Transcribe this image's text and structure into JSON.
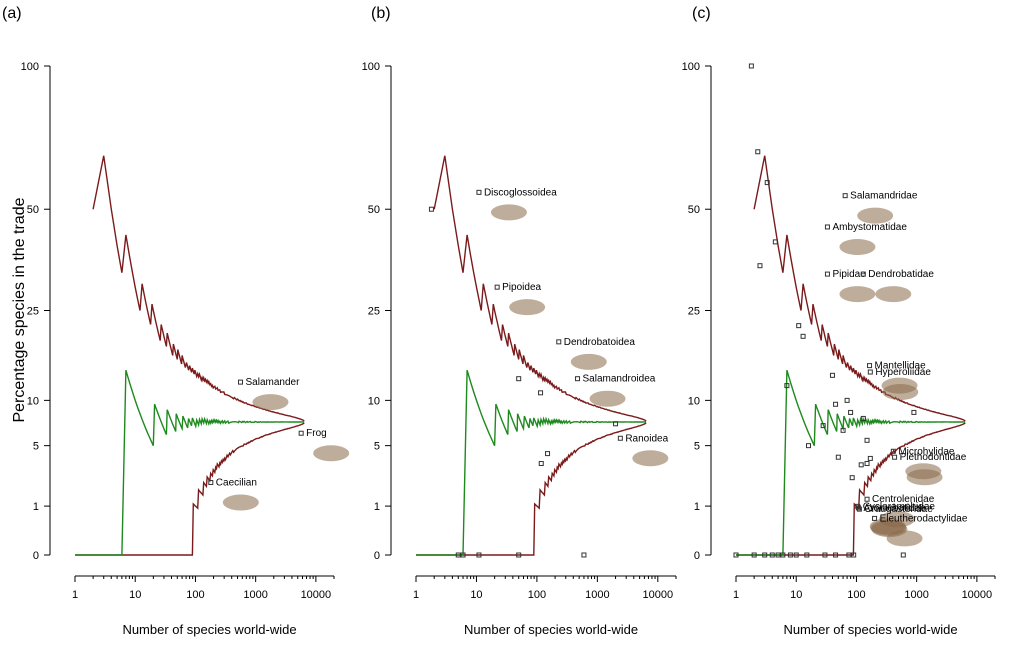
{
  "figure": {
    "ylabel": "Percentage species in the trade",
    "xlabel": "Number of species world-wide",
    "colors": {
      "upper_lower_bound": "#7a1a1a",
      "mean_line": "#1e8a1e",
      "points": "#333333",
      "axis": "#000000"
    }
  },
  "chart_data": [
    {
      "panel": "(a)",
      "type": "scatter",
      "xlabel": "Number of species world-wide",
      "ylabel": "Percentage species in the trade",
      "x_scale": "log",
      "y_scale": "sqrt",
      "xlim": [
        1,
        20000
      ],
      "ylim": [
        0,
        100
      ],
      "x_ticks": [
        "1",
        "10",
        "100",
        "1000",
        "10000"
      ],
      "y_ticks": [
        "0",
        "1",
        "5",
        "10",
        "25",
        "50",
        "100"
      ],
      "grid": false,
      "reference_lines": {
        "overall_rate_percent": 7.4,
        "total_species": 6500,
        "description": "funnel of expected maximum/minimum percentages (dark red) and expected mean (green)"
      },
      "points": [
        {
          "label": "Salamander",
          "x": 560,
          "y": 12.5,
          "icon": "salamander-icon"
        },
        {
          "label": "Frog",
          "x": 5700,
          "y": 6.2,
          "icon": "frog-icon"
        },
        {
          "label": "Caecilian",
          "x": 180,
          "y": 2.2,
          "icon": "caecilian-icon"
        }
      ]
    },
    {
      "panel": "(b)",
      "type": "scatter",
      "xlabel": "Number of species world-wide",
      "x_scale": "log",
      "y_scale": "sqrt",
      "xlim": [
        1,
        20000
      ],
      "ylim": [
        0,
        100
      ],
      "x_ticks": [
        "1",
        "10",
        "100",
        "1000",
        "10000"
      ],
      "y_ticks": [
        "0",
        "1",
        "5",
        "10",
        "25",
        "50",
        "100"
      ],
      "grid": false,
      "points": [
        {
          "label": "Discoglossoidea",
          "x": 11,
          "y": 55,
          "icon": "toad-icon"
        },
        {
          "label": "Pipoidea",
          "x": 22,
          "y": 30,
          "icon": "pipa-frog-icon"
        },
        {
          "label": "Dendrobatoidea",
          "x": 230,
          "y": 19,
          "icon": "poison-frog-icon"
        },
        {
          "label": "Salamandroidea",
          "x": 470,
          "y": 13,
          "icon": "salamander-icon"
        },
        {
          "label": "Ranoidea",
          "x": 2400,
          "y": 5.7,
          "icon": "frog-icon"
        },
        {
          "label": "",
          "x": 1.8,
          "y": 50
        },
        {
          "label": "",
          "x": 50,
          "y": 13
        },
        {
          "label": "",
          "x": 115,
          "y": 11
        },
        {
          "label": "",
          "x": 2000,
          "y": 7.2
        },
        {
          "label": "",
          "x": 150,
          "y": 4.3
        },
        {
          "label": "",
          "x": 118,
          "y": 3.5
        },
        {
          "label": "",
          "x": 5,
          "y": 0
        },
        {
          "label": "",
          "x": 6,
          "y": 0
        },
        {
          "label": "",
          "x": 11,
          "y": 0
        },
        {
          "label": "",
          "x": 50,
          "y": 0
        },
        {
          "label": "",
          "x": 600,
          "y": 0
        }
      ]
    },
    {
      "panel": "(c)",
      "type": "scatter",
      "xlabel": "Number of species world-wide",
      "x_scale": "log",
      "y_scale": "sqrt",
      "xlim": [
        1,
        20000
      ],
      "ylim": [
        0,
        100
      ],
      "x_ticks": [
        "1",
        "10",
        "100",
        "1000",
        "10000"
      ],
      "y_ticks": [
        "0",
        "1",
        "5",
        "10",
        "25",
        "50",
        "100"
      ],
      "grid": false,
      "points": [
        {
          "label": "Salamandridae",
          "x": 65,
          "y": 54,
          "icon": "salamander-icon"
        },
        {
          "label": "Ambystomatidae",
          "x": 33,
          "y": 45,
          "icon": "newt-icon"
        },
        {
          "label": "Pipidae",
          "x": 33,
          "y": 33,
          "icon": "pipa-frog-icon"
        },
        {
          "label": "Dendrobatidae",
          "x": 130,
          "y": 33,
          "icon": "poison-frog-icon"
        },
        {
          "label": "Mantellidae",
          "x": 165,
          "y": 15,
          "icon": "mantella-icon"
        },
        {
          "label": "Hyperoliidae",
          "x": 170,
          "y": 14,
          "icon": "reed-frog-icon"
        },
        {
          "label": "Microhylidae",
          "x": 410,
          "y": 4.5,
          "icon": "microhylid-icon"
        },
        {
          "label": "Plethodontidae",
          "x": 430,
          "y": 4.0,
          "icon": "plethodontid-icon"
        },
        {
          "label": "Centrolenidae",
          "x": 150,
          "y": 1.3,
          "icon": "glass-frog-icon"
        },
        {
          "label": "Cycloramphidae",
          "x": 105,
          "y": 0.99,
          "icon": "cycloramphid-icon"
        },
        {
          "label": "Aromobatidae",
          "x": 108,
          "y": 0.93,
          "icon": "aromobatid-icon"
        },
        {
          "label": "Craugastoridae",
          "x": 112,
          "y": 0.88,
          "icon": "craugastorid-icon"
        },
        {
          "label": "Eleutherodactylidae",
          "x": 200,
          "y": 0.56,
          "icon": "eleutherodactylid-icon"
        },
        {
          "label": "",
          "x": 1.8,
          "y": 100
        },
        {
          "label": "",
          "x": 2.3,
          "y": 68
        },
        {
          "label": "",
          "x": 3.3,
          "y": 58
        },
        {
          "label": "",
          "x": 4.5,
          "y": 41
        },
        {
          "label": "",
          "x": 2.5,
          "y": 35
        },
        {
          "label": "",
          "x": 11,
          "y": 22
        },
        {
          "label": "",
          "x": 13,
          "y": 20
        },
        {
          "label": "",
          "x": 40,
          "y": 13.5
        },
        {
          "label": "",
          "x": 7,
          "y": 12
        },
        {
          "label": "",
          "x": 45,
          "y": 9.5
        },
        {
          "label": "",
          "x": 70,
          "y": 10
        },
        {
          "label": "",
          "x": 80,
          "y": 8.5
        },
        {
          "label": "",
          "x": 130,
          "y": 7.8
        },
        {
          "label": "",
          "x": 900,
          "y": 8.5
        },
        {
          "label": "",
          "x": 28,
          "y": 7
        },
        {
          "label": "",
          "x": 60,
          "y": 6.5
        },
        {
          "label": "",
          "x": 150,
          "y": 5.5
        },
        {
          "label": "",
          "x": 16,
          "y": 5
        },
        {
          "label": "",
          "x": 50,
          "y": 4
        },
        {
          "label": "",
          "x": 170,
          "y": 3.9
        },
        {
          "label": "",
          "x": 150,
          "y": 3.5
        },
        {
          "label": "",
          "x": 120,
          "y": 3.4
        },
        {
          "label": "",
          "x": 85,
          "y": 2.5
        },
        {
          "label": "",
          "x": 1,
          "y": 0
        },
        {
          "label": "",
          "x": 2,
          "y": 0
        },
        {
          "label": "",
          "x": 3,
          "y": 0
        },
        {
          "label": "",
          "x": 4,
          "y": 0
        },
        {
          "label": "",
          "x": 5,
          "y": 0
        },
        {
          "label": "",
          "x": 6,
          "y": 0
        },
        {
          "label": "",
          "x": 8,
          "y": 0
        },
        {
          "label": "",
          "x": 10,
          "y": 0
        },
        {
          "label": "",
          "x": 15,
          "y": 0
        },
        {
          "label": "",
          "x": 30,
          "y": 0
        },
        {
          "label": "",
          "x": 45,
          "y": 0
        },
        {
          "label": "",
          "x": 75,
          "y": 0
        },
        {
          "label": "",
          "x": 90,
          "y": 0
        },
        {
          "label": "",
          "x": 600,
          "y": 0
        }
      ]
    }
  ]
}
